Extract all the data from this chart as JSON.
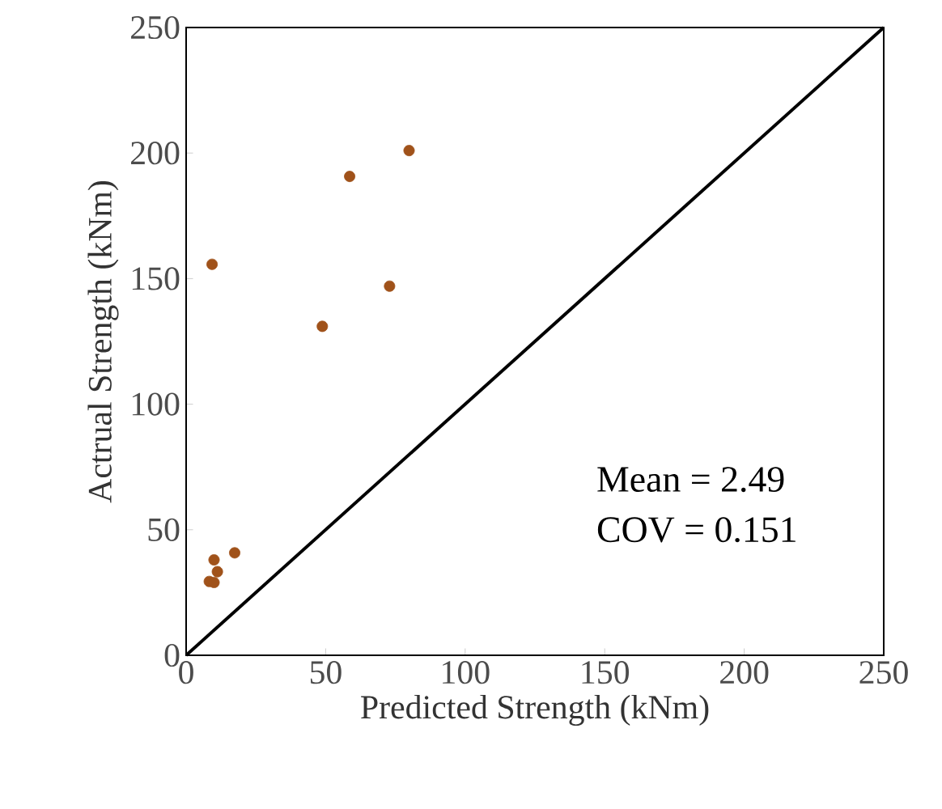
{
  "chart_data": {
    "type": "scatter",
    "xlabel": "Predicted Strength (kNm)",
    "ylabel": "Actrual Strength (kNm)",
    "xlim": [
      0,
      250
    ],
    "ylim": [
      0,
      250
    ],
    "xticks": [
      0,
      50,
      100,
      150,
      200,
      250
    ],
    "yticks": [
      0,
      50,
      100,
      150,
      200,
      250
    ],
    "grid": false,
    "series": [
      {
        "type": "scatter",
        "marker": "circle",
        "color": "#a0521a",
        "x": [
          9.3,
          58.6,
          79.9,
          72.9,
          48.8,
          17.4,
          10,
          11.2,
          8.3,
          10
        ],
        "values": [
          155.7,
          190.7,
          201,
          147,
          131,
          40.8,
          38,
          33.3,
          29.4,
          29
        ]
      },
      {
        "type": "line",
        "marker": "none",
        "color": "#000000",
        "x": [
          0,
          250
        ],
        "values": [
          0,
          250
        ]
      }
    ],
    "annotations": [
      "Mean = 2.49",
      "COV = 0.151"
    ]
  }
}
